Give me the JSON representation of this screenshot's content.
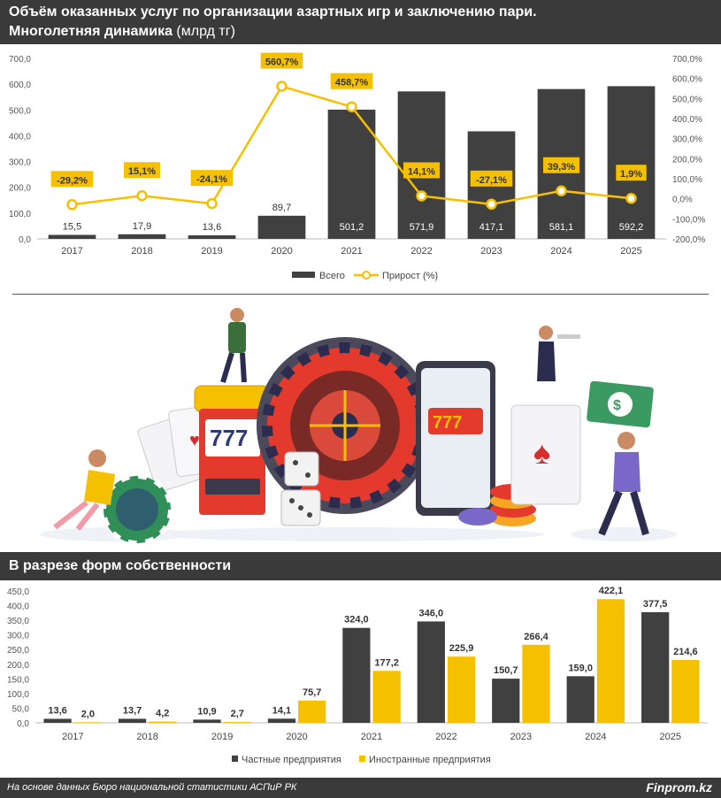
{
  "header": {
    "title_line1": "Объём оказанных услуг по организации азартных игр и заключению пари.",
    "title_line2_bold": "Многолетняя динамика",
    "title_line2_unit": " (млрд тг)"
  },
  "section2": {
    "title": "В разрезе форм собственности"
  },
  "footer": {
    "source": "На основе данных Бюро национальной статистики АСПиР РК",
    "brand": "Finprom.kz"
  },
  "colors": {
    "dark": "#404040",
    "accent": "#f5c000",
    "background": "#ffffff",
    "header": "#3a3a3a"
  },
  "illustration": {
    "description_icons": [
      "roulette-wheel-icon",
      "slot-machine-icon",
      "playing-cards-icon",
      "dice-icon",
      "casino-chips-icon",
      "smartphone-icon",
      "money-icon"
    ]
  },
  "chart_data": [
    {
      "type": "bar",
      "categories": [
        "2017",
        "2018",
        "2019",
        "2020",
        "2021",
        "2022",
        "2023",
        "2024",
        "2025"
      ],
      "series": [
        {
          "name": "Всего",
          "type": "bar",
          "axis": "left",
          "color": "#404040",
          "values": [
            15.5,
            17.9,
            13.6,
            89.7,
            501.2,
            571.9,
            417.1,
            581.1,
            592.2
          ],
          "labels": [
            "15,5",
            "17,9",
            "13,6",
            "89,7",
            "501,2",
            "571,9",
            "417,1",
            "581,1",
            "592,2"
          ]
        },
        {
          "name": "Прирост (%)",
          "type": "line",
          "axis": "right",
          "color": "#f5c000",
          "values": [
            -29.2,
            15.1,
            -24.1,
            560.7,
            458.7,
            14.1,
            -27.1,
            39.3,
            1.9
          ],
          "labels": [
            "-29,2%",
            "15,1%",
            "-24,1%",
            "560,7%",
            "458,7%",
            "14,1%",
            "-27,1%",
            "39,3%",
            "1,9%"
          ]
        }
      ],
      "ylim": [
        0,
        700
      ],
      "y_ticks": [
        "0,0",
        "100,0",
        "200,0",
        "300,0",
        "400,0",
        "500,0",
        "600,0",
        "700,0"
      ],
      "y2lim": [
        -200,
        700
      ],
      "y2_ticks": [
        "-200,0%",
        "-100,0%",
        "0,0%",
        "100,0%",
        "200,0%",
        "300,0%",
        "400,0%",
        "500,0%",
        "600,0%",
        "700,0%"
      ],
      "legend": [
        "Всего",
        "Прирост (%)"
      ],
      "legend_position": "bottom",
      "grid": false
    },
    {
      "type": "bar",
      "categories": [
        "2017",
        "2018",
        "2019",
        "2020",
        "2021",
        "2022",
        "2023",
        "2024",
        "2025"
      ],
      "series": [
        {
          "name": "Частные предприятия",
          "color": "#404040",
          "values": [
            13.6,
            13.7,
            10.9,
            14.1,
            324.0,
            346.0,
            150.7,
            159.0,
            377.5
          ],
          "labels": [
            "13,6",
            "13,7",
            "10,9",
            "14,1",
            "324,0",
            "346,0",
            "150,7",
            "159,0",
            "377,5"
          ]
        },
        {
          "name": "Иностранные предприятия",
          "color": "#f5c000",
          "values": [
            2.0,
            4.2,
            2.7,
            75.7,
            177.2,
            225.9,
            266.4,
            422.1,
            214.6
          ],
          "labels": [
            "2,0",
            "4,2",
            "2,7",
            "75,7",
            "177,2",
            "225,9",
            "266,4",
            "422,1",
            "214,6"
          ]
        }
      ],
      "ylim": [
        0,
        450
      ],
      "y_ticks": [
        "0,0",
        "50,0",
        "100,0",
        "150,0",
        "200,0",
        "250,0",
        "300,0",
        "350,0",
        "400,0",
        "450,0"
      ],
      "legend": [
        "Частные предприятия",
        "Иностранные предприятия"
      ],
      "legend_position": "bottom",
      "grid": false
    }
  ]
}
